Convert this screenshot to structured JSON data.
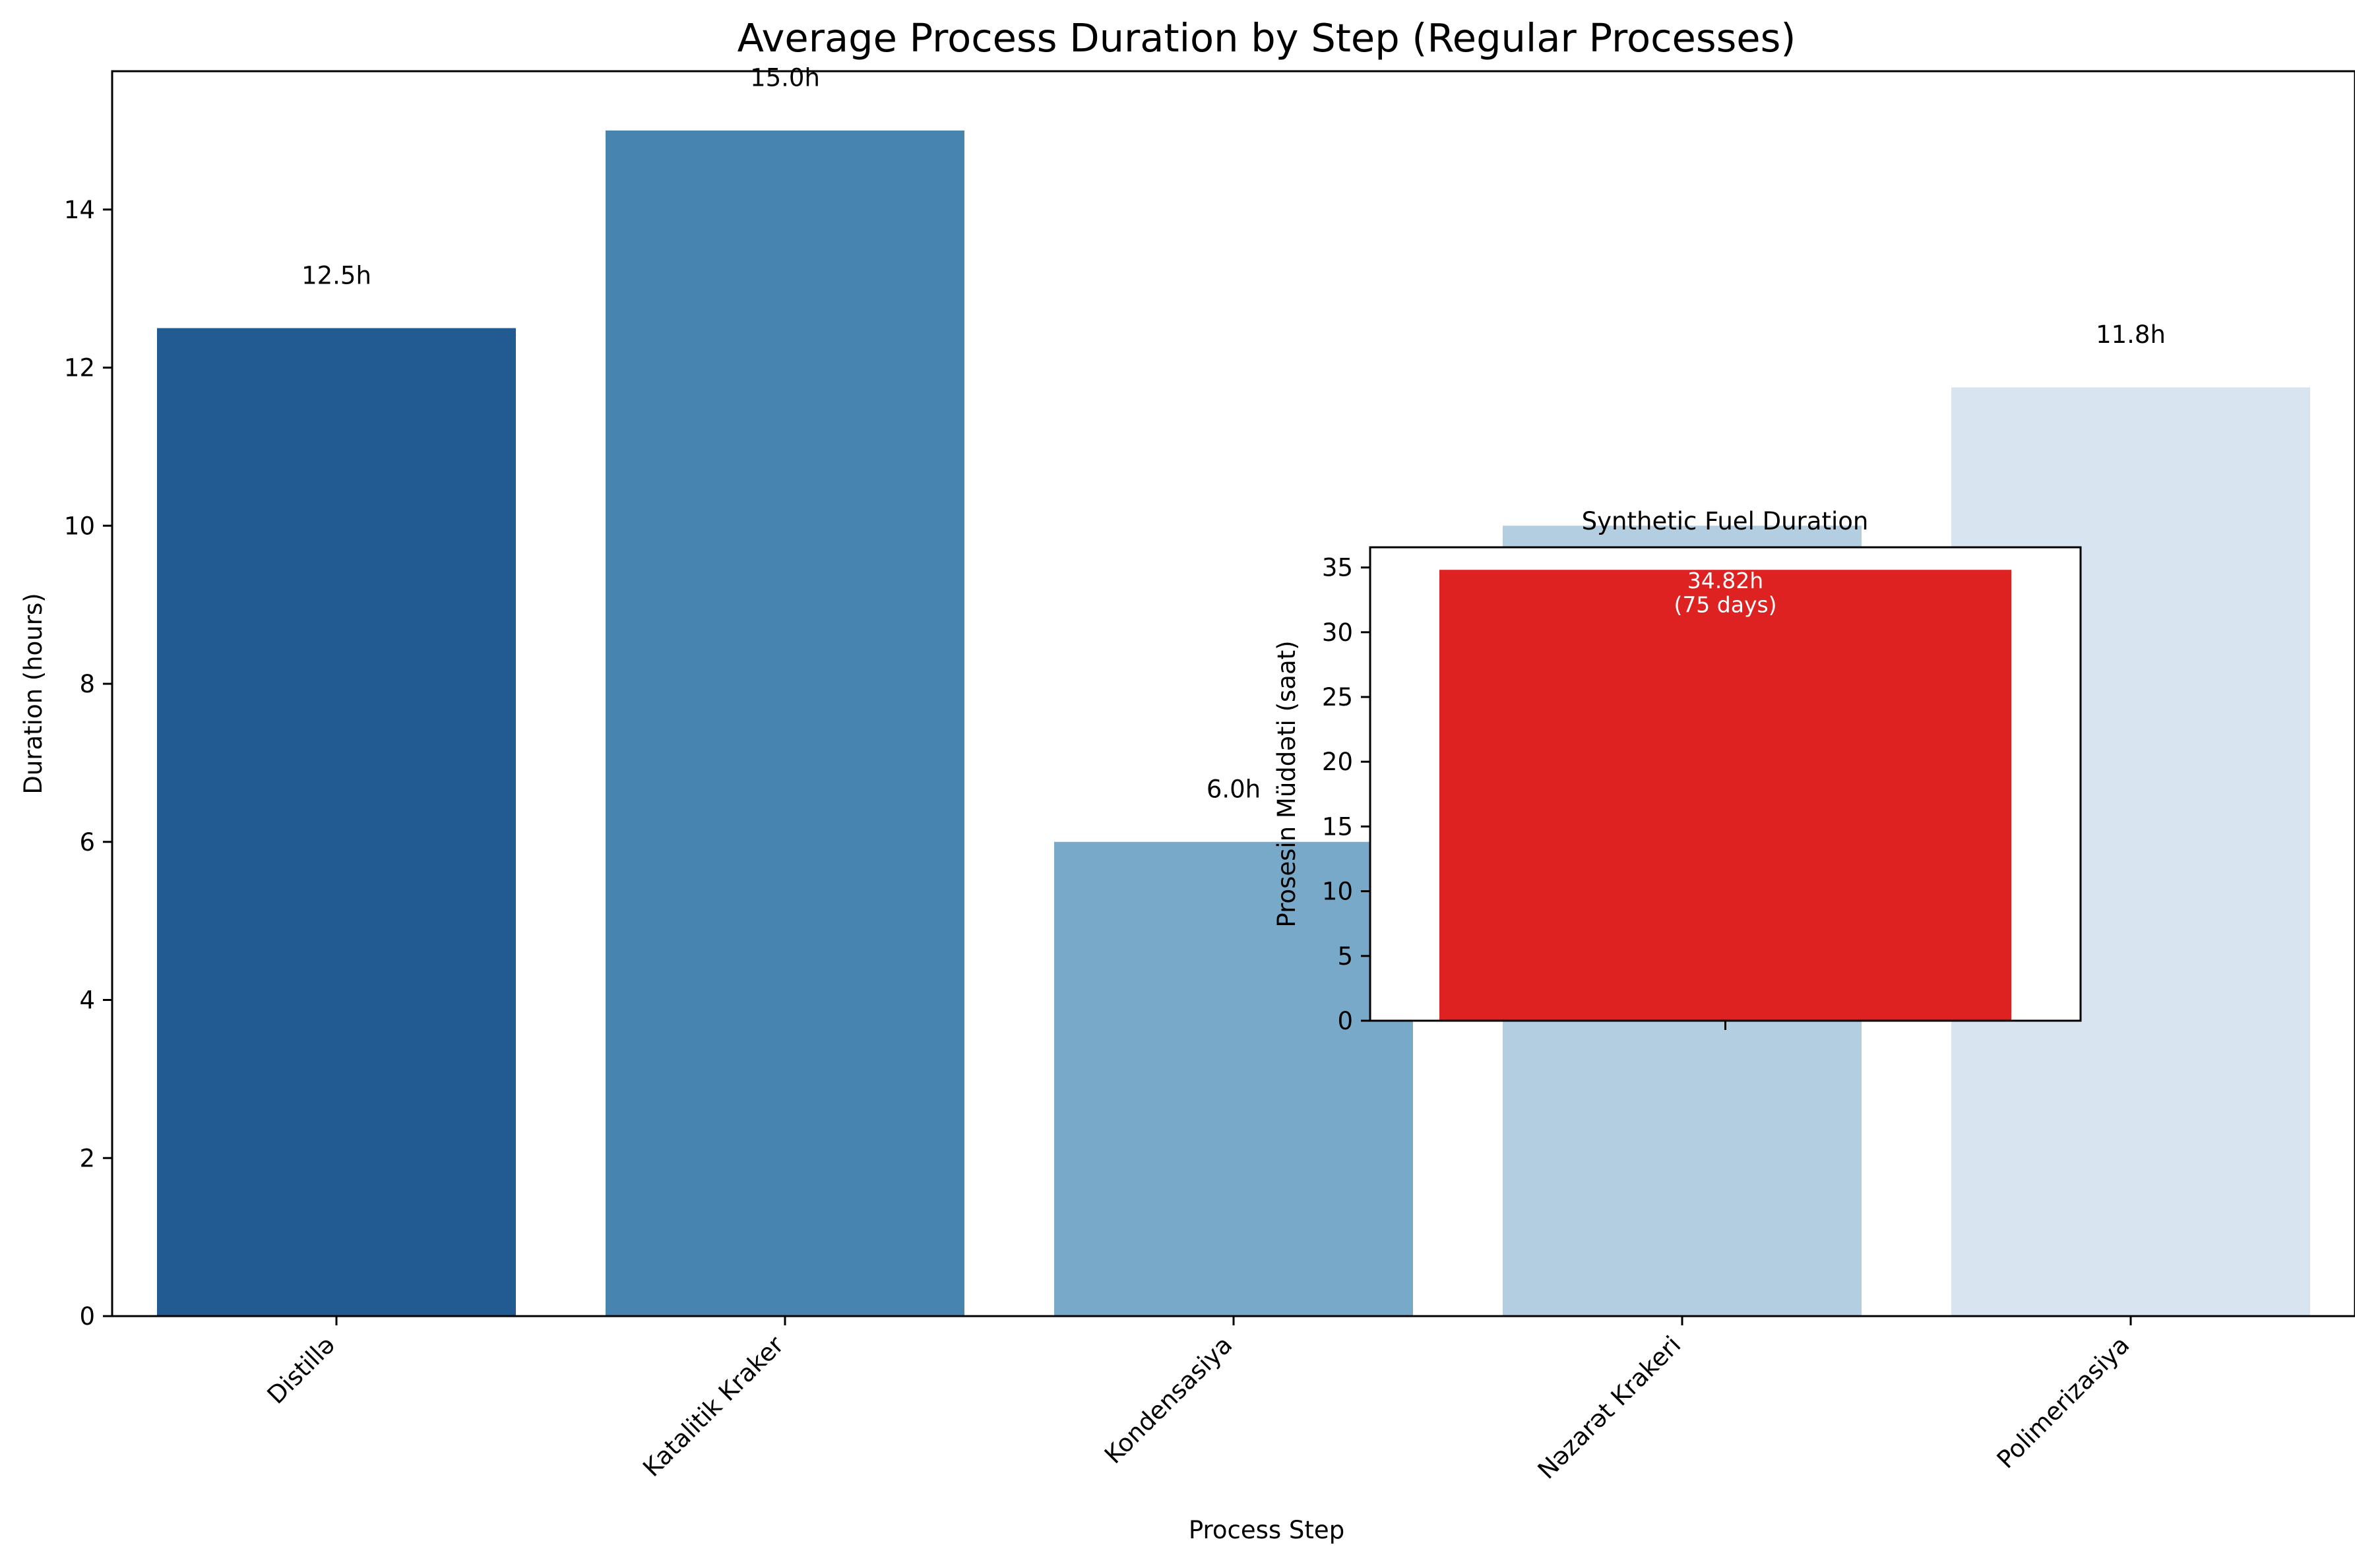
{
  "chart_data": [
    {
      "type": "bar",
      "title": "Average Process Duration by Step (Regular Processes)",
      "xlabel": "Process Step",
      "ylabel": "Duration (hours)",
      "categories": [
        "Distillə",
        "Katalitik Kraker",
        "Kondensasiya",
        "Nəzarət Krakeri",
        "Polimerizasiya"
      ],
      "values": [
        12.5,
        15.0,
        6.0,
        10.0,
        11.75
      ],
      "data_labels": [
        "12.5h",
        "15.0h",
        "6.0h",
        "",
        "11.8h"
      ],
      "colors": [
        "#225b91",
        "#4884b0",
        "#79a9c8",
        "#b3cee0",
        "#d8e5f1"
      ],
      "ylim": [
        0,
        15.75
      ],
      "yticks": [
        0,
        2,
        4,
        6,
        8,
        10,
        12,
        14
      ],
      "grid": false,
      "legend": "none"
    },
    {
      "type": "bar",
      "title": "Synthetic Fuel Duration",
      "xlabel": "",
      "ylabel": "Prosesin Müddəti (saat)",
      "categories": [
        ""
      ],
      "values": [
        34.82
      ],
      "data_labels": [
        "34.82h\n(75 days)"
      ],
      "colors": [
        "#de2222"
      ],
      "ylim": [
        0,
        36.56
      ],
      "yticks": [
        0,
        5,
        10,
        15,
        20,
        25,
        30,
        35
      ],
      "grid": false,
      "legend": "none"
    }
  ]
}
